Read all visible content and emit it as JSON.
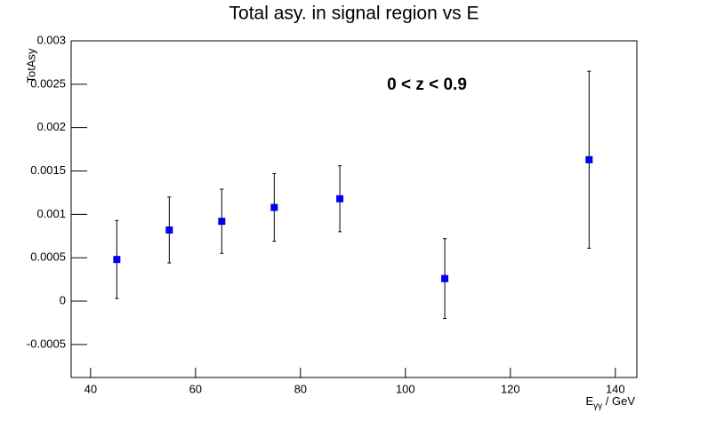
{
  "chart_data": {
    "type": "scatter",
    "title": "Total asy. in signal region vs E",
    "annotation": "0 < z < 0.9",
    "y_label": "TotAsy",
    "x_label": [
      "E",
      "γγ",
      " / GeV"
    ],
    "x": [
      45,
      55,
      65,
      75,
      87.5,
      107.5,
      135
    ],
    "values": [
      0.00048,
      0.00082,
      0.00092,
      0.00108,
      0.00118,
      0.00026,
      0.00163
    ],
    "errors": [
      0.00045,
      0.00038,
      0.00037,
      0.00039,
      0.00038,
      0.00046,
      0.00102
    ],
    "color": "#0000ee",
    "xlim": [
      36.3,
      144.1
    ],
    "xticks": [
      40,
      60,
      80,
      100,
      120,
      140
    ],
    "ylim": [
      -0.00088,
      0.003
    ],
    "yticks": [
      -0.0005,
      0,
      0.0005,
      0.001,
      0.0015,
      0.002,
      0.0025,
      0.003
    ]
  }
}
